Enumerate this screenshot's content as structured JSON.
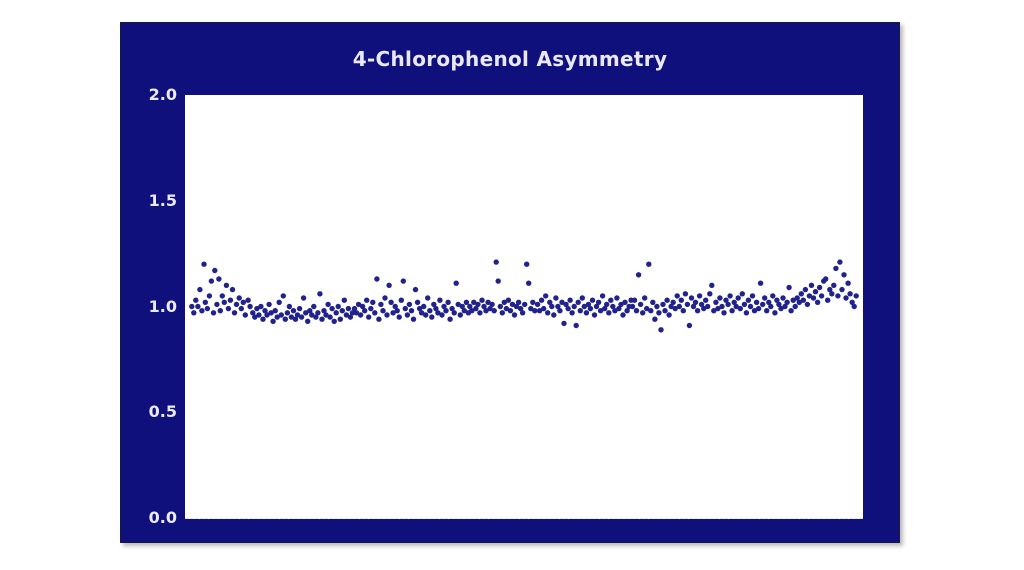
{
  "page": {
    "background_color": "#ffffff"
  },
  "chart_data": {
    "type": "scatter",
    "title": "4-Chlorophenol Asymmetry",
    "xlabel": "",
    "ylabel": "",
    "xlim": [
      0,
      1
    ],
    "ylim": [
      0.0,
      2.0
    ],
    "yticks": [
      2.0,
      1.5,
      1.0,
      0.5,
      0.0
    ],
    "ytick_labels": [
      "2.0",
      "1.5",
      "1.0",
      "0.5",
      "0.0"
    ],
    "xticks_visible": false,
    "grid": false,
    "legend": "none",
    "panel_color": "#10107d",
    "plot_background_color": "#ffffff",
    "text_color": "#e9e9fb",
    "marker_color": "#22228c",
    "marker_radius": 2.7,
    "points": [
      [
        0.01,
        1.0
      ],
      [
        0.013,
        0.97
      ],
      [
        0.016,
        1.03
      ],
      [
        0.019,
        1.0
      ],
      [
        0.022,
        1.08
      ],
      [
        0.025,
        0.98
      ],
      [
        0.028,
        1.2
      ],
      [
        0.03,
        1.02
      ],
      [
        0.033,
        0.99
      ],
      [
        0.036,
        1.05
      ],
      [
        0.039,
        1.12
      ],
      [
        0.042,
        0.97
      ],
      [
        0.044,
        1.17
      ],
      [
        0.047,
        1.01
      ],
      [
        0.05,
        1.13
      ],
      [
        0.052,
        0.98
      ],
      [
        0.055,
        1.05
      ],
      [
        0.058,
        1.02
      ],
      [
        0.061,
        1.1
      ],
      [
        0.064,
        0.99
      ],
      [
        0.067,
        1.03
      ],
      [
        0.07,
        1.08
      ],
      [
        0.073,
        0.97
      ],
      [
        0.076,
        1.01
      ],
      [
        0.08,
        1.04
      ],
      [
        0.083,
        0.99
      ],
      [
        0.086,
        1.02
      ],
      [
        0.089,
        0.96
      ],
      [
        0.093,
        1.03
      ],
      [
        0.096,
        1.0
      ],
      [
        0.1,
        0.97
      ],
      [
        0.103,
        0.95
      ],
      [
        0.106,
        0.99
      ],
      [
        0.109,
        0.96
      ],
      [
        0.112,
        1.0
      ],
      [
        0.115,
        0.94
      ],
      [
        0.118,
        0.98
      ],
      [
        0.121,
        0.96
      ],
      [
        0.124,
        1.01
      ],
      [
        0.127,
        0.97
      ],
      [
        0.13,
        0.93
      ],
      [
        0.133,
        0.98
      ],
      [
        0.136,
        0.95
      ],
      [
        0.139,
        1.02
      ],
      [
        0.142,
        0.96
      ],
      [
        0.145,
        1.05
      ],
      [
        0.148,
        0.94
      ],
      [
        0.151,
        0.97
      ],
      [
        0.154,
        1.0
      ],
      [
        0.157,
        0.95
      ],
      [
        0.16,
        0.98
      ],
      [
        0.163,
        0.94
      ],
      [
        0.166,
        0.96
      ],
      [
        0.169,
        0.99
      ],
      [
        0.172,
        0.95
      ],
      [
        0.175,
        1.04
      ],
      [
        0.178,
        0.97
      ],
      [
        0.181,
        0.93
      ],
      [
        0.184,
        0.98
      ],
      [
        0.187,
        0.96
      ],
      [
        0.19,
        1.0
      ],
      [
        0.193,
        0.95
      ],
      [
        0.196,
        0.97
      ],
      [
        0.199,
        1.06
      ],
      [
        0.202,
        0.94
      ],
      [
        0.205,
        0.98
      ],
      [
        0.208,
        0.96
      ],
      [
        0.211,
        1.01
      ],
      [
        0.214,
        0.95
      ],
      [
        0.217,
        0.99
      ],
      [
        0.22,
        0.93
      ],
      [
        0.223,
        0.97
      ],
      [
        0.226,
        1.0
      ],
      [
        0.229,
        0.94
      ],
      [
        0.232,
        0.98
      ],
      [
        0.235,
        1.03
      ],
      [
        0.238,
        0.96
      ],
      [
        0.241,
        0.99
      ],
      [
        0.244,
        0.95
      ],
      [
        0.247,
        0.97
      ],
      [
        0.25,
        0.99
      ],
      [
        0.253,
        0.97
      ],
      [
        0.256,
        1.01
      ],
      [
        0.259,
        0.96
      ],
      [
        0.262,
        1.0
      ],
      [
        0.265,
        0.98
      ],
      [
        0.268,
        1.03
      ],
      [
        0.271,
        0.95
      ],
      [
        0.274,
        0.99
      ],
      [
        0.277,
        1.02
      ],
      [
        0.28,
        0.97
      ],
      [
        0.283,
        1.13
      ],
      [
        0.286,
        0.94
      ],
      [
        0.289,
        1.01
      ],
      [
        0.292,
        0.98
      ],
      [
        0.295,
        1.04
      ],
      [
        0.298,
        0.96
      ],
      [
        0.301,
        1.1
      ],
      [
        0.304,
        1.02
      ],
      [
        0.307,
        0.97
      ],
      [
        0.31,
        1.0
      ],
      [
        0.313,
        0.98
      ],
      [
        0.316,
        0.95
      ],
      [
        0.319,
        1.03
      ],
      [
        0.322,
        1.12
      ],
      [
        0.325,
        0.99
      ],
      [
        0.328,
        0.96
      ],
      [
        0.331,
        1.01
      ],
      [
        0.334,
        0.98
      ],
      [
        0.337,
        0.94
      ],
      [
        0.34,
        1.08
      ],
      [
        0.343,
        1.02
      ],
      [
        0.346,
        0.99
      ],
      [
        0.349,
        0.97
      ],
      [
        0.352,
        1.0
      ],
      [
        0.355,
        0.96
      ],
      [
        0.358,
        1.04
      ],
      [
        0.361,
        0.98
      ],
      [
        0.364,
        0.95
      ],
      [
        0.367,
        1.01
      ],
      [
        0.37,
        0.99
      ],
      [
        0.373,
        0.97
      ],
      [
        0.376,
        1.03
      ],
      [
        0.379,
        0.96
      ],
      [
        0.382,
        1.0
      ],
      [
        0.385,
        0.98
      ],
      [
        0.388,
        1.02
      ],
      [
        0.391,
        0.94
      ],
      [
        0.394,
        0.99
      ],
      [
        0.397,
        0.97
      ],
      [
        0.4,
        1.11
      ],
      [
        0.403,
        1.01
      ],
      [
        0.406,
        0.96
      ],
      [
        0.409,
        1.0
      ],
      [
        0.412,
        0.98
      ],
      [
        0.415,
        1.02
      ],
      [
        0.418,
        0.97
      ],
      [
        0.42,
        1.0
      ],
      [
        0.423,
        0.98
      ],
      [
        0.426,
        1.02
      ],
      [
        0.429,
        0.99
      ],
      [
        0.432,
        1.01
      ],
      [
        0.435,
        0.97
      ],
      [
        0.438,
        1.03
      ],
      [
        0.441,
        1.0
      ],
      [
        0.444,
        0.98
      ],
      [
        0.447,
        1.02
      ],
      [
        0.45,
        0.99
      ],
      [
        0.453,
        1.01
      ],
      [
        0.456,
        0.98
      ],
      [
        0.459,
        1.21
      ],
      [
        0.462,
        1.12
      ],
      [
        0.465,
        1.0
      ],
      [
        0.468,
        0.97
      ],
      [
        0.471,
        1.02
      ],
      [
        0.474,
        0.99
      ],
      [
        0.477,
        1.03
      ],
      [
        0.48,
        0.98
      ],
      [
        0.483,
        1.01
      ],
      [
        0.486,
        0.96
      ],
      [
        0.489,
        1.0
      ],
      [
        0.492,
        1.02
      ],
      [
        0.495,
        0.99
      ],
      [
        0.498,
        0.97
      ],
      [
        0.501,
        1.01
      ],
      [
        0.504,
        1.2
      ],
      [
        0.507,
        1.11
      ],
      [
        0.51,
        0.99
      ],
      [
        0.513,
        1.02
      ],
      [
        0.516,
        0.98
      ],
      [
        0.52,
        1.01
      ],
      [
        0.523,
        0.98
      ],
      [
        0.526,
        1.03
      ],
      [
        0.529,
        0.99
      ],
      [
        0.532,
        1.05
      ],
      [
        0.535,
        0.97
      ],
      [
        0.538,
        1.02
      ],
      [
        0.541,
        1.0
      ],
      [
        0.544,
        0.96
      ],
      [
        0.547,
        1.04
      ],
      [
        0.55,
        1.0
      ],
      [
        0.553,
        0.98
      ],
      [
        0.556,
        1.02
      ],
      [
        0.559,
        0.92
      ],
      [
        0.562,
        1.01
      ],
      [
        0.565,
        0.99
      ],
      [
        0.568,
        1.03
      ],
      [
        0.571,
        0.97
      ],
      [
        0.574,
        1.0
      ],
      [
        0.577,
        0.91
      ],
      [
        0.58,
        1.02
      ],
      [
        0.583,
        0.98
      ],
      [
        0.586,
        1.04
      ],
      [
        0.589,
        1.0
      ],
      [
        0.592,
        0.97
      ],
      [
        0.595,
        1.01
      ],
      [
        0.598,
        0.99
      ],
      [
        0.601,
        1.03
      ],
      [
        0.604,
        0.96
      ],
      [
        0.607,
        1.0
      ],
      [
        0.61,
        1.02
      ],
      [
        0.613,
        0.98
      ],
      [
        0.616,
        1.05
      ],
      [
        0.619,
        0.99
      ],
      [
        0.622,
        1.01
      ],
      [
        0.625,
        0.97
      ],
      [
        0.628,
        1.03
      ],
      [
        0.631,
        1.0
      ],
      [
        0.634,
        0.98
      ],
      [
        0.637,
        1.04
      ],
      [
        0.64,
        0.99
      ],
      [
        0.643,
        1.01
      ],
      [
        0.646,
        0.96
      ],
      [
        0.649,
        1.02
      ],
      [
        0.652,
        0.98
      ],
      [
        0.655,
        1.0
      ],
      [
        0.658,
        1.03
      ],
      [
        0.66,
        1.0
      ],
      [
        0.663,
        1.03
      ],
      [
        0.666,
        0.98
      ],
      [
        0.669,
        1.15
      ],
      [
        0.672,
        1.01
      ],
      [
        0.675,
        0.97
      ],
      [
        0.678,
        1.04
      ],
      [
        0.681,
        0.99
      ],
      [
        0.684,
        1.2
      ],
      [
        0.687,
        0.98
      ],
      [
        0.69,
        1.02
      ],
      [
        0.693,
        0.94
      ],
      [
        0.696,
        1.0
      ],
      [
        0.699,
        0.97
      ],
      [
        0.702,
        0.89
      ],
      [
        0.705,
        1.01
      ],
      [
        0.708,
        0.98
      ],
      [
        0.711,
        1.03
      ],
      [
        0.714,
        0.96
      ],
      [
        0.717,
        1.0
      ],
      [
        0.72,
        1.02
      ],
      [
        0.723,
        0.99
      ],
      [
        0.726,
        1.05
      ],
      [
        0.729,
        1.0
      ],
      [
        0.732,
        1.03
      ],
      [
        0.735,
        0.98
      ],
      [
        0.738,
        1.06
      ],
      [
        0.741,
        1.01
      ],
      [
        0.744,
        0.91
      ],
      [
        0.747,
        1.04
      ],
      [
        0.75,
        1.0
      ],
      [
        0.753,
        1.02
      ],
      [
        0.756,
        0.98
      ],
      [
        0.759,
        1.05
      ],
      [
        0.762,
        1.01
      ],
      [
        0.765,
        0.99
      ],
      [
        0.768,
        1.03
      ],
      [
        0.771,
        1.0
      ],
      [
        0.774,
        1.06
      ],
      [
        0.777,
        1.1
      ],
      [
        0.78,
        0.98
      ],
      [
        0.783,
        1.02
      ],
      [
        0.786,
        0.99
      ],
      [
        0.789,
        1.04
      ],
      [
        0.792,
        1.0
      ],
      [
        0.795,
        0.97
      ],
      [
        0.798,
        1.03
      ],
      [
        0.801,
        1.01
      ],
      [
        0.804,
        1.05
      ],
      [
        0.807,
        0.98
      ],
      [
        0.81,
        1.02
      ],
      [
        0.813,
        1.0
      ],
      [
        0.816,
        1.04
      ],
      [
        0.819,
        0.99
      ],
      [
        0.822,
        1.06
      ],
      [
        0.825,
        1.01
      ],
      [
        0.828,
        0.97
      ],
      [
        0.831,
        1.03
      ],
      [
        0.834,
        1.0
      ],
      [
        0.837,
        1.05
      ],
      [
        0.84,
        0.98
      ],
      [
        0.843,
        1.02
      ],
      [
        0.846,
        0.99
      ],
      [
        0.849,
        1.11
      ],
      [
        0.852,
        1.01
      ],
      [
        0.855,
        1.04
      ],
      [
        0.858,
        0.98
      ],
      [
        0.861,
        1.02
      ],
      [
        0.864,
        1.0
      ],
      [
        0.867,
        1.05
      ],
      [
        0.87,
        0.97
      ],
      [
        0.873,
        1.03
      ],
      [
        0.876,
        1.01
      ],
      [
        0.879,
        0.99
      ],
      [
        0.882,
        1.04
      ],
      [
        0.885,
        1.0
      ],
      [
        0.888,
        1.02
      ],
      [
        0.891,
        1.09
      ],
      [
        0.894,
        0.98
      ],
      [
        0.897,
        1.03
      ],
      [
        0.9,
        1.0
      ],
      [
        0.903,
        1.04
      ],
      [
        0.906,
        1.02
      ],
      [
        0.909,
        1.06
      ],
      [
        0.912,
        1.03
      ],
      [
        0.915,
        1.08
      ],
      [
        0.918,
        1.01
      ],
      [
        0.921,
        1.05
      ],
      [
        0.924,
        1.1
      ],
      [
        0.927,
        1.04
      ],
      [
        0.93,
        1.07
      ],
      [
        0.933,
        1.02
      ],
      [
        0.936,
        1.09
      ],
      [
        0.939,
        1.05
      ],
      [
        0.942,
        1.12
      ],
      [
        0.945,
        1.13
      ],
      [
        0.948,
        1.03
      ],
      [
        0.951,
        1.08
      ],
      [
        0.954,
        1.06
      ],
      [
        0.957,
        1.1
      ],
      [
        0.96,
        1.18
      ],
      [
        0.963,
        1.05
      ],
      [
        0.966,
        1.21
      ],
      [
        0.969,
        1.08
      ],
      [
        0.972,
        1.15
      ],
      [
        0.975,
        1.04
      ],
      [
        0.978,
        1.11
      ],
      [
        0.981,
        1.06
      ],
      [
        0.984,
        1.02
      ],
      [
        0.987,
        1.0
      ],
      [
        0.99,
        1.05
      ]
    ]
  }
}
